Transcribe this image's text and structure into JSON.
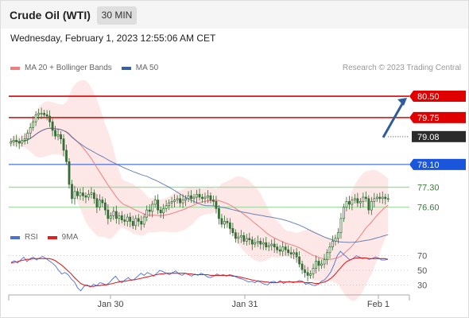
{
  "header": {
    "title": "Crude Oil (WTI)",
    "timeframe": "30 MIN"
  },
  "datetime": "Wednesday, February 1, 2023 12:55:06 AM CET",
  "legend": {
    "ma20_label": "MA 20 + Bollinger Bands",
    "ma50_label": "MA 50",
    "credit": "Research © 2023 Trading Central",
    "rsi_label": "RSI",
    "rsi9ma_label": "9MA"
  },
  "colors": {
    "ma20": "#f08080",
    "ma50": "#3a5fa0",
    "band_fill": "#fde3e3",
    "candle_up": "#3a8c3a",
    "candle_down": "#3a6e3a",
    "resistance": "#e00000",
    "pivot": "#1a56db",
    "support": "#a8dca8",
    "rsi": "#4a6fd8",
    "rsi9ma": "#e02020",
    "forecast_arrow": "#2f5c9c"
  },
  "chart_data": [
    {
      "type": "candlestick",
      "title": "Crude Oil (WTI)",
      "timeframe": "30 MIN",
      "x_ticks": [
        "Jan 30",
        "Jan 31",
        "Feb 1"
      ],
      "ylim": [
        76.0,
        81.2
      ],
      "levels": [
        {
          "value": "80.50",
          "type": "resistance"
        },
        {
          "value": "79.75",
          "type": "resistance"
        },
        {
          "value": "79.08",
          "type": "current"
        },
        {
          "value": "78.10",
          "type": "pivot"
        },
        {
          "value": "77.30",
          "type": "support"
        },
        {
          "value": "76.60",
          "type": "support"
        }
      ],
      "close": [
        78.9,
        78.95,
        78.9,
        78.85,
        78.95,
        79.0,
        79.2,
        79.4,
        79.6,
        79.85,
        79.9,
        79.9,
        79.85,
        79.8,
        79.6,
        79.3,
        79.1,
        79.15,
        79.0,
        78.6,
        78.2,
        77.4,
        76.9,
        77.15,
        77.0,
        77.1,
        77.0,
        76.95,
        77.05,
        77.1,
        76.9,
        76.6,
        76.85,
        76.75,
        76.5,
        76.2,
        76.3,
        76.45,
        76.2,
        76.3,
        76.15,
        76.1,
        76.25,
        76.1,
        75.95,
        76.2,
        76.1,
        76.0,
        76.25,
        76.5,
        76.45,
        76.7,
        76.85,
        76.5,
        76.4,
        76.55,
        76.65,
        76.75,
        76.8,
        76.85,
        76.9,
        76.75,
        76.85,
        76.9,
        77.0,
        76.9,
        76.95,
        77.05,
        76.95,
        76.9,
        76.95,
        77.0,
        76.85,
        76.8,
        76.55,
        76.2,
        76.0,
        76.1,
        76.05,
        75.85,
        75.7,
        75.5,
        75.55,
        75.6,
        75.4,
        75.5,
        75.45,
        75.3,
        75.35,
        75.4,
        75.3,
        75.35,
        75.2,
        75.25,
        75.3,
        75.2,
        75.1,
        75.05,
        75.2,
        75.1,
        75.0,
        74.95,
        75.0,
        74.85,
        74.6,
        74.4,
        74.3,
        74.2,
        74.25,
        74.45,
        74.7,
        74.55,
        74.6,
        74.75,
        75.0,
        75.2,
        75.4,
        75.5,
        75.7,
        76.2,
        76.6,
        76.8,
        76.7,
        76.85,
        76.9,
        76.75,
        76.8,
        76.95,
        76.9,
        76.5,
        76.8,
        76.9,
        76.95,
        76.9,
        76.95,
        76.9,
        76.9
      ],
      "series": [
        {
          "name": "MA 20 + Bollinger Bands"
        },
        {
          "name": "MA 50"
        }
      ]
    },
    {
      "type": "line",
      "yticks": [
        "70",
        "50",
        "30"
      ],
      "ylim": [
        10,
        80
      ],
      "series": [
        {
          "name": "RSI",
          "values": [
            61,
            63,
            60,
            64,
            68,
            62,
            66,
            68,
            64,
            67,
            69,
            66,
            63,
            60,
            56,
            50,
            45,
            47,
            44,
            38,
            34,
            26,
            22,
            28,
            30,
            27,
            31,
            29,
            33,
            32,
            30,
            33,
            38,
            42,
            36,
            33,
            37,
            40,
            36,
            38,
            42,
            46,
            43,
            47,
            45,
            42,
            46,
            50,
            48,
            46,
            44,
            47,
            49,
            45,
            43,
            46,
            44,
            42,
            45,
            43,
            46,
            44,
            41,
            40,
            42,
            45,
            43,
            44,
            42,
            44,
            43,
            41,
            39,
            38,
            36,
            34,
            35,
            33,
            36,
            33,
            31,
            30,
            34,
            35,
            33,
            36,
            32,
            34,
            35,
            33,
            34,
            36,
            35,
            31,
            32,
            30,
            29,
            31,
            35,
            37,
            42,
            48,
            58,
            70,
            76,
            72,
            68,
            64,
            66,
            70,
            68,
            66,
            67,
            65,
            66,
            68,
            67,
            64,
            64,
            65
          ]
        },
        {
          "name": "9MA",
          "values": [
            60,
            61,
            62,
            63,
            64,
            65,
            65,
            66,
            66,
            66,
            66,
            66,
            66,
            65,
            63,
            60,
            57,
            53,
            49,
            45,
            40,
            36,
            32,
            30,
            29,
            28,
            28,
            29,
            29,
            30,
            30,
            31,
            32,
            33,
            34,
            35,
            35,
            36,
            37,
            37,
            38,
            39,
            40,
            41,
            42,
            43,
            44,
            45,
            45,
            46,
            46,
            46,
            46,
            46,
            46,
            46,
            45,
            45,
            44,
            44,
            44,
            44,
            44,
            43,
            43,
            43,
            43,
            43,
            43,
            43,
            42,
            42,
            41,
            40,
            39,
            38,
            37,
            36,
            35,
            35,
            34,
            34,
            33,
            33,
            33,
            34,
            34,
            34,
            34,
            34,
            34,
            34,
            34,
            33,
            33,
            33,
            32,
            32,
            33,
            34,
            36,
            39,
            43,
            48,
            53,
            58,
            62,
            64,
            66,
            67,
            67,
            67,
            67,
            66,
            66,
            66,
            66,
            66,
            66,
            65
          ]
        }
      ]
    }
  ]
}
